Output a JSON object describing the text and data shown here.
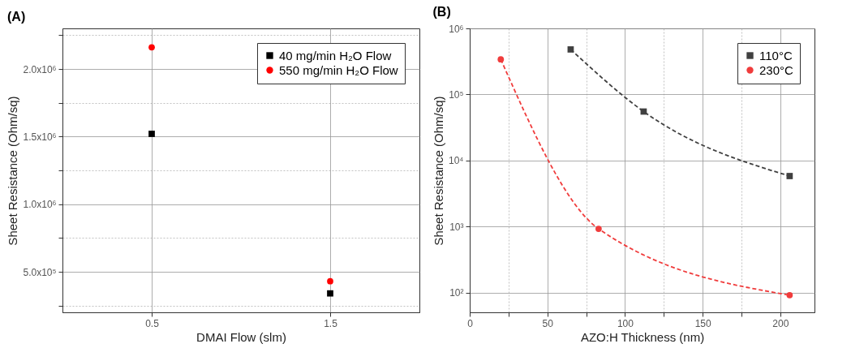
{
  "chart_data": [
    {
      "type": "scatter",
      "title": "(A)",
      "xlabel": "DMAI Flow (slm)",
      "ylabel": "Sheet Resistance (Ohm/sq)",
      "xlim": [
        0,
        2
      ],
      "xticks": [
        0.5,
        1.5
      ],
      "ylim": [
        200000,
        2300000
      ],
      "yticks": [
        {
          "value": 250000,
          "label": null
        },
        {
          "value": 500000,
          "label": "5.0x10⁵"
        },
        {
          "value": 750000,
          "label": null
        },
        {
          "value": 1000000,
          "label": "1.0x10⁶"
        },
        {
          "value": 1250000,
          "label": null
        },
        {
          "value": 1500000,
          "label": "1.5x10⁶"
        },
        {
          "value": 1750000,
          "label": null
        },
        {
          "value": 2000000,
          "label": "2.0x10⁶"
        },
        {
          "value": 2250000,
          "label": null
        }
      ],
      "grid": true,
      "legend": "top right",
      "series": [
        {
          "name": "40 mg/min H₂O Flow",
          "color": "#000000",
          "marker": "square",
          "x": [
            0.5,
            1.5
          ],
          "values": [
            1520000,
            340000
          ]
        },
        {
          "name": "550 mg/min H₂O Flow",
          "color": "#ff0000",
          "marker": "circle",
          "x": [
            0.5,
            1.5
          ],
          "values": [
            2160000,
            430000
          ]
        }
      ]
    },
    {
      "type": "line",
      "title": "(B)",
      "xlabel": "AZO:H Thickness (nm)",
      "ylabel": "Sheet Resistance (Ohm/sq)",
      "log": "y",
      "xlim": [
        0,
        222
      ],
      "xticks": [
        0,
        {
          "value": 25,
          "label": null
        },
        50,
        {
          "value": 75,
          "label": null
        },
        100,
        {
          "value": 125,
          "label": null
        },
        150,
        {
          "value": 175,
          "label": null
        },
        200
      ],
      "ylim": [
        50,
        1000000
      ],
      "yticks": [
        {
          "value": 100,
          "label": "10²"
        },
        {
          "value": 1000,
          "label": "10³"
        },
        {
          "value": 10000,
          "label": "10⁴"
        },
        {
          "value": 100000,
          "label": "10⁵"
        },
        {
          "value": 1000000,
          "label": "10⁶"
        }
      ],
      "grid": true,
      "legend": "top right",
      "line_style": "dashed",
      "series": [
        {
          "name": "110°C",
          "color": "#404040",
          "marker": "square",
          "x": [
            65,
            112,
            206
          ],
          "values": [
            480000,
            55000,
            5800
          ]
        },
        {
          "name": "230°C",
          "color": "#f03c3c",
          "marker": "circle",
          "x": [
            20,
            83,
            206
          ],
          "values": [
            340000,
            920,
            91
          ]
        }
      ]
    }
  ]
}
